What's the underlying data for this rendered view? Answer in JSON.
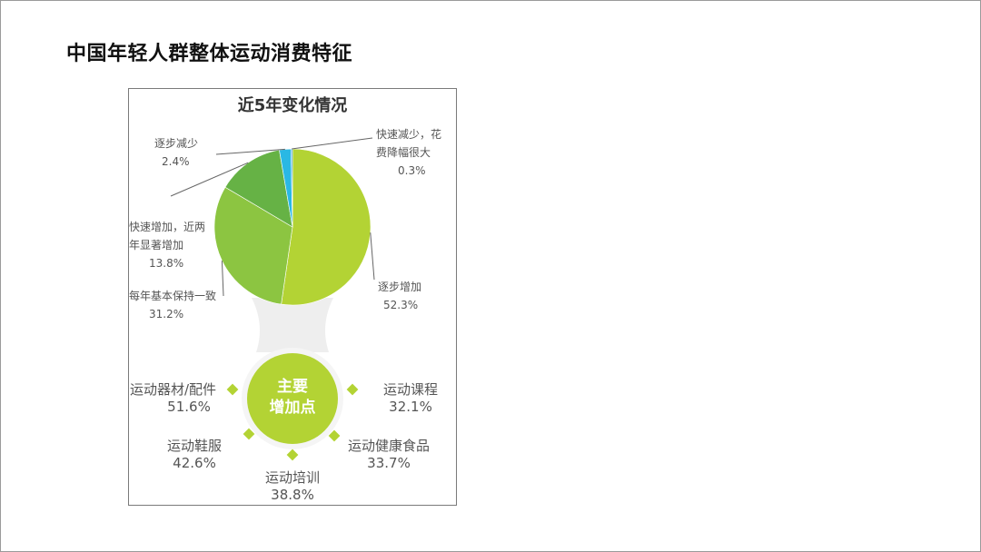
{
  "page": {
    "title": "中国年轻人群整体运动消费特征"
  },
  "chart_data": [
    {
      "type": "pie",
      "title": "近5年变化情况",
      "slices": [
        {
          "label": "逐步增加",
          "value": 52.3,
          "color": "#b3d334"
        },
        {
          "label": "每年基本保持一致",
          "value": 31.2,
          "color": "#8cc541"
        },
        {
          "label": "快速增加，近两年显著增加",
          "value": 13.8,
          "color": "#66b245"
        },
        {
          "label": "逐步减少",
          "value": 2.4,
          "color": "#2ab8e4"
        },
        {
          "label": "快速减少，花费降幅很大",
          "value": 0.3,
          "color": "#3aa0d8"
        }
      ],
      "value_labels": [
        "52.3%",
        "31.2%",
        "13.8%",
        "2.4%",
        "0.3%"
      ]
    },
    {
      "type": "table",
      "center_label": [
        "主要",
        "增加点"
      ],
      "items": [
        {
          "label": "运动器材/配件",
          "value": 51.6,
          "value_text": "51.6%"
        },
        {
          "label": "运动课程",
          "value": 32.1,
          "value_text": "32.1%"
        },
        {
          "label": "运动鞋服",
          "value": 42.6,
          "value_text": "42.6%"
        },
        {
          "label": "运动健康食品",
          "value": 33.7,
          "value_text": "33.7%"
        },
        {
          "label": "运动培训",
          "value": 38.8,
          "value_text": "38.8%"
        }
      ],
      "accent_color": "#b3d334"
    }
  ]
}
